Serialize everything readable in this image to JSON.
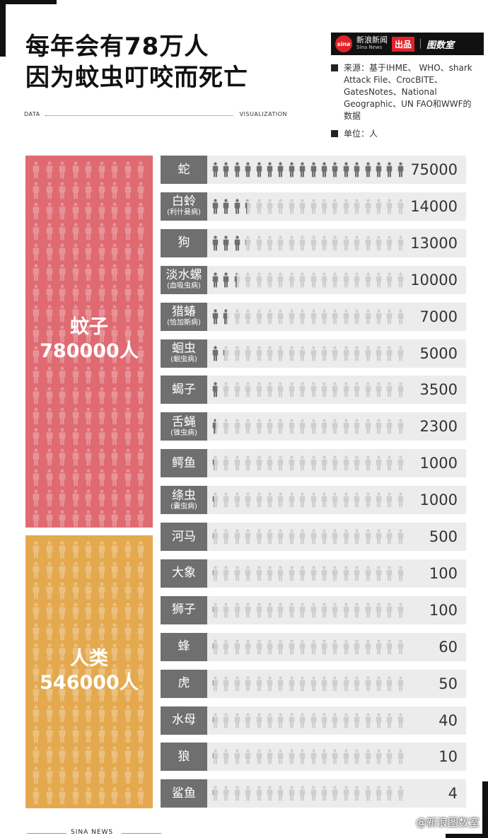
{
  "title": {
    "line1": "每年会有78万人",
    "line2": "因为蚊虫叮咬而死亡"
  },
  "tagline": {
    "left": "DATA",
    "right": "VISUALIZATION"
  },
  "logo": {
    "sina_mark": "sina",
    "name": "新浪新闻",
    "name_en": "Sina News",
    "badge": "出品",
    "brand": "图数室"
  },
  "source": {
    "text": "来源：基于IHME、 WHO、shark Attack File、CrocBITE、GatesNotes、National Geographic、UN FAO和WWF的数据"
  },
  "unit": {
    "text": "单位：人"
  },
  "highlight": {
    "mosquito": {
      "name": "蚊子",
      "value": "780000人",
      "color": "#df6a72"
    },
    "human": {
      "name": "人类",
      "value": "546000人",
      "color": "#e4a94f"
    }
  },
  "chart_data": {
    "type": "bar",
    "title": "每年会有78万人因为蚊虫叮咬而死亡",
    "unit": "人",
    "max_scale": 75000,
    "icons_per_row": 18,
    "highlighted": [
      {
        "name": "蚊子",
        "value": 780000
      },
      {
        "name": "人类",
        "value": 546000
      }
    ],
    "rows": [
      {
        "name": "蛇",
        "sub": "",
        "value": 75000,
        "label": "75000"
      },
      {
        "name": "白蛉",
        "sub": "(利什曼病)",
        "value": 14000,
        "label": "14000"
      },
      {
        "name": "狗",
        "sub": "",
        "value": 13000,
        "label": "13000"
      },
      {
        "name": "淡水螺",
        "sub": "(血吸虫病)",
        "value": 10000,
        "label": "10000"
      },
      {
        "name": "猎蝽",
        "sub": "(恰加斯病)",
        "value": 7000,
        "label": "7000"
      },
      {
        "name": "蛔虫",
        "sub": "(蛔虫病)",
        "value": 5000,
        "label": "5000"
      },
      {
        "name": "蝎子",
        "sub": "",
        "value": 3500,
        "label": "3500"
      },
      {
        "name": "舌蝇",
        "sub": "(锥虫病)",
        "value": 2300,
        "label": "2300"
      },
      {
        "name": "鳄鱼",
        "sub": "",
        "value": 1000,
        "label": "1000"
      },
      {
        "name": "绦虫",
        "sub": "(囊虫病)",
        "value": 1000,
        "label": "1000"
      },
      {
        "name": "河马",
        "sub": "",
        "value": 500,
        "label": "500"
      },
      {
        "name": "大象",
        "sub": "",
        "value": 100,
        "label": "100"
      },
      {
        "name": "狮子",
        "sub": "",
        "value": 100,
        "label": "100"
      },
      {
        "name": "蜂",
        "sub": "",
        "value": 60,
        "label": "60"
      },
      {
        "name": "虎",
        "sub": "",
        "value": 50,
        "label": "50"
      },
      {
        "name": "水母",
        "sub": "",
        "value": 40,
        "label": "40"
      },
      {
        "name": "狼",
        "sub": "",
        "value": 10,
        "label": "10"
      },
      {
        "name": "鲨鱼",
        "sub": "",
        "value": 4,
        "label": "4"
      }
    ],
    "colors": {
      "filled": "#6f6f6f",
      "empty": "#cfcfcf",
      "row_bg": "#ececec",
      "name_bg": "#6f6f6f"
    }
  },
  "footer": {
    "left": "SINA NEWS",
    "right": "@新浪图数室"
  }
}
